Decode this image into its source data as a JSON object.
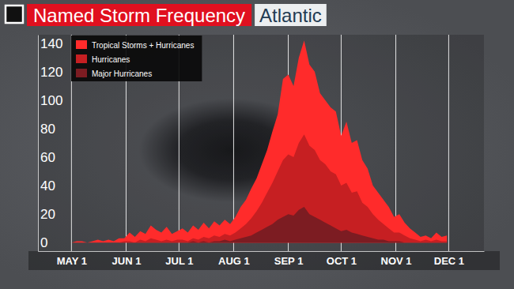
{
  "chart_data": {
    "type": "area",
    "title": "Named Storm Frequency",
    "subtitle": "Atlantic",
    "x": [
      0,
      3,
      6,
      9,
      12,
      15,
      18,
      21,
      24,
      27,
      30,
      33,
      36,
      39,
      42,
      45,
      48,
      51,
      54,
      57,
      60,
      63,
      66,
      69,
      72,
      75,
      78,
      81,
      84,
      87,
      90,
      93,
      96,
      99,
      102,
      105,
      108,
      111,
      114,
      117,
      120,
      123,
      126,
      129,
      132,
      135,
      138,
      141,
      144,
      147,
      150,
      153,
      156,
      159,
      162,
      165,
      168,
      171,
      174,
      177,
      180,
      183,
      186,
      189,
      192,
      195,
      198,
      201,
      204,
      207,
      210,
      213
    ],
    "series": [
      {
        "name": "Tropical Storms + Hurricanes",
        "color": "#ff2b2b",
        "values": [
          0,
          1,
          1,
          0,
          1,
          2,
          1,
          2,
          1,
          3,
          3,
          7,
          4,
          8,
          6,
          12,
          9,
          7,
          11,
          6,
          8,
          10,
          7,
          12,
          9,
          14,
          10,
          15,
          12,
          16,
          13,
          18,
          25,
          30,
          38,
          45,
          55,
          65,
          78,
          90,
          115,
          118,
          110,
          130,
          142,
          125,
          120,
          105,
          100,
          95,
          92,
          75,
          85,
          70,
          72,
          58,
          52,
          40,
          35,
          30,
          25,
          18,
          20,
          14,
          10,
          7,
          4,
          5,
          3,
          7,
          4,
          5
        ]
      },
      {
        "name": "Hurricanes",
        "color": "#c61f22",
        "values": [
          0,
          0,
          0,
          0,
          0,
          0,
          0,
          0,
          0,
          0,
          1,
          1,
          0,
          2,
          1,
          3,
          2,
          1,
          2,
          1,
          2,
          2,
          1,
          3,
          2,
          4,
          3,
          5,
          4,
          6,
          5,
          7,
          10,
          13,
          17,
          22,
          28,
          35,
          42,
          50,
          58,
          62,
          60,
          70,
          76,
          68,
          65,
          58,
          55,
          50,
          48,
          40,
          42,
          35,
          36,
          28,
          25,
          20,
          16,
          13,
          10,
          7,
          7,
          5,
          3,
          2,
          1,
          2,
          1,
          2,
          1,
          1
        ]
      },
      {
        "name": "Major Hurricanes",
        "color": "#7c1c22",
        "values": [
          0,
          0,
          0,
          0,
          0,
          0,
          0,
          0,
          0,
          0,
          0,
          0,
          0,
          0,
          0,
          0,
          0,
          0,
          0,
          0,
          0,
          0,
          0,
          1,
          0,
          1,
          0,
          1,
          1,
          2,
          1,
          2,
          3,
          4,
          5,
          7,
          9,
          11,
          13,
          16,
          18,
          20,
          19,
          23,
          25,
          20,
          18,
          16,
          14,
          12,
          10,
          8,
          9,
          7,
          6,
          5,
          4,
          3,
          2,
          2,
          1,
          1,
          1,
          0,
          0,
          0,
          0,
          0,
          0,
          0,
          0,
          0
        ]
      }
    ],
    "xlim": [
      -19,
      234
    ],
    "xticks": [
      {
        "value": 0,
        "label": "MAY 1"
      },
      {
        "value": 31,
        "label": "JUN 1"
      },
      {
        "value": 61,
        "label": "JUL 1"
      },
      {
        "value": 92,
        "label": "AUG 1"
      },
      {
        "value": 123,
        "label": "SEP 1"
      },
      {
        "value": 153,
        "label": "OCT 1"
      },
      {
        "value": 184,
        "label": "NOV 1"
      },
      {
        "value": 214,
        "label": "DEC 1"
      }
    ],
    "ylim": [
      -6,
      146
    ],
    "yticks": [
      0,
      20,
      40,
      60,
      80,
      100,
      120,
      140
    ],
    "grid": "x",
    "legend": "upper left"
  }
}
